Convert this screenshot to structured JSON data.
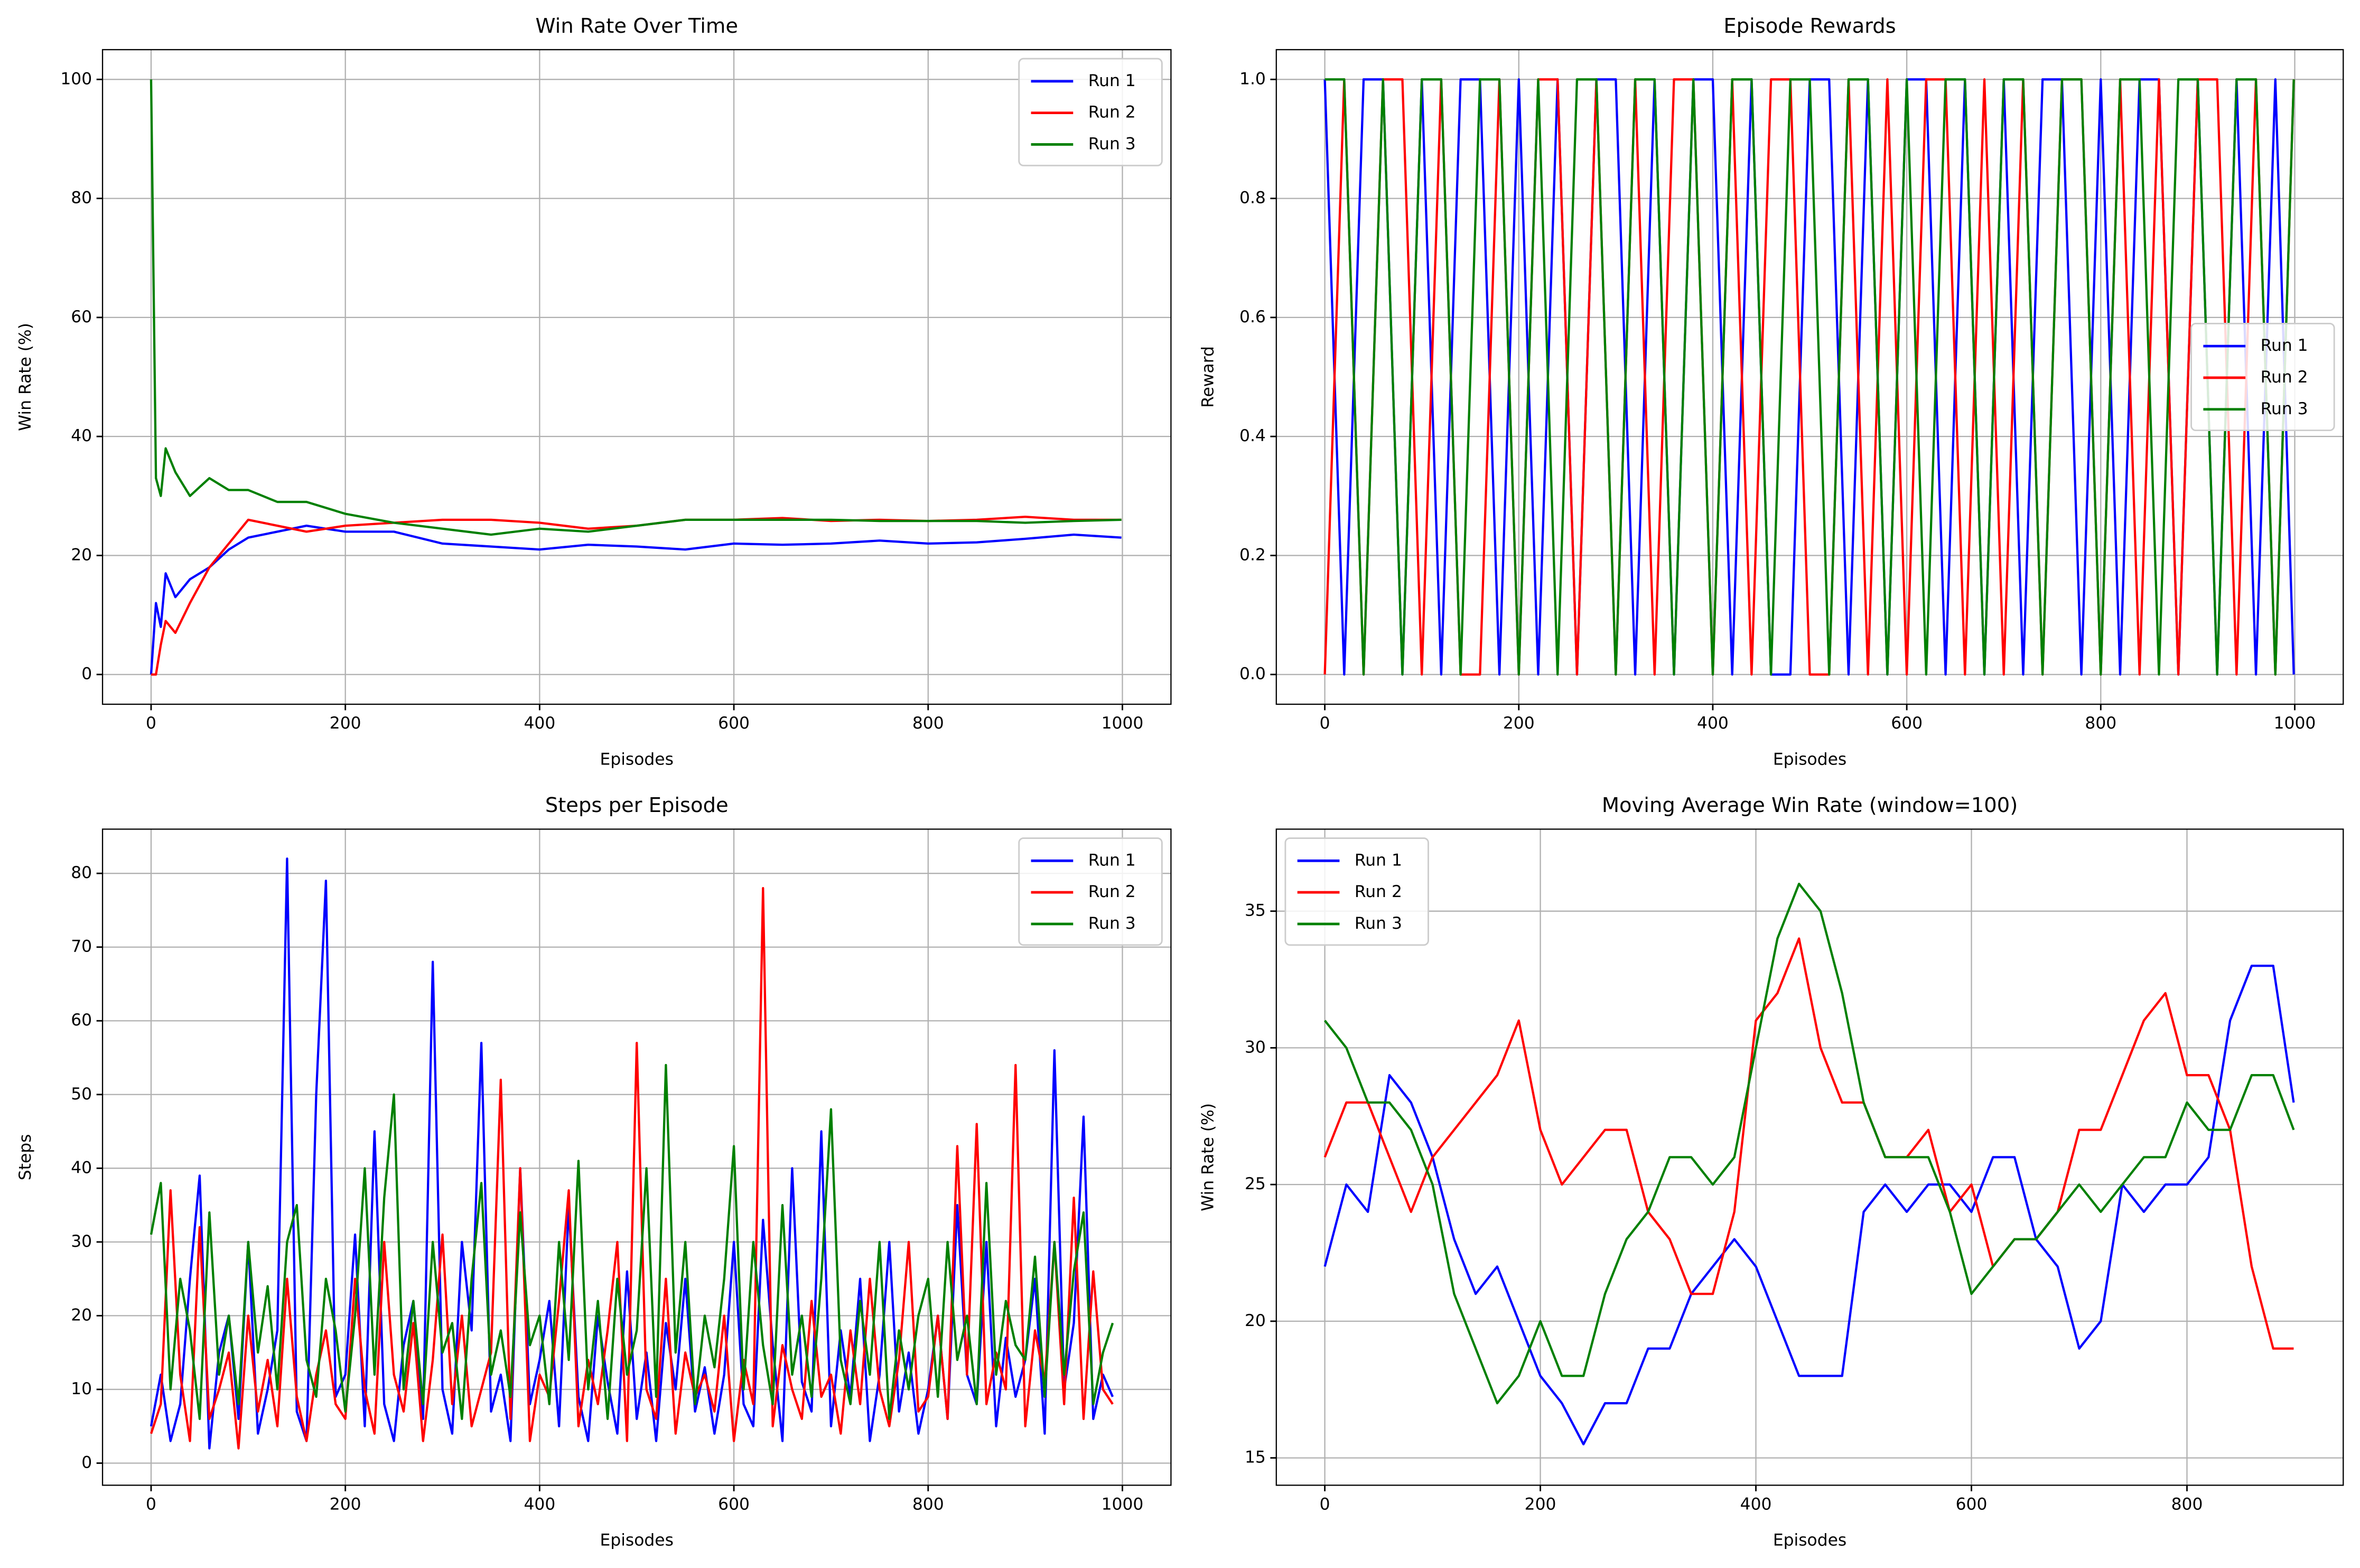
{
  "chart_data": [
    {
      "type": "line",
      "title": "Win Rate Over Time",
      "xlabel": "Episodes",
      "ylabel": "Win Rate (%)",
      "x": [
        0,
        5,
        10,
        15,
        25,
        40,
        60,
        80,
        100,
        130,
        160,
        200,
        250,
        300,
        350,
        400,
        450,
        500,
        550,
        600,
        650,
        700,
        750,
        800,
        850,
        900,
        950,
        999
      ],
      "series": [
        {
          "name": "Run 1",
          "color": "#0000ff",
          "values": [
            0,
            12,
            8,
            17,
            13,
            16,
            18,
            21,
            23,
            24,
            25,
            24,
            24,
            22,
            21.5,
            21,
            21.8,
            21.5,
            21,
            22,
            21.8,
            22,
            22.5,
            22,
            22.2,
            22.8,
            23.5,
            23
          ]
        },
        {
          "name": "Run 2",
          "color": "#ff0000",
          "values": [
            0,
            0,
            5,
            9,
            7,
            12,
            18,
            22,
            26,
            25,
            24,
            25,
            25.5,
            26,
            26,
            25.5,
            24.5,
            25,
            26,
            26,
            26.3,
            25.8,
            26,
            25.8,
            26,
            26.5,
            26,
            26
          ]
        },
        {
          "name": "Run 3",
          "color": "#008000",
          "values": [
            100,
            33,
            30,
            38,
            34,
            30,
            33,
            31,
            31,
            29,
            29,
            27,
            25.5,
            24.5,
            23.5,
            24.5,
            24,
            25,
            26,
            26,
            26,
            26,
            25.8,
            25.8,
            25.8,
            25.5,
            25.8,
            26
          ]
        }
      ],
      "xlim": [
        -50,
        1050
      ],
      "xticks": [
        0,
        200,
        400,
        600,
        800,
        1000
      ],
      "ylim": [
        -5,
        105
      ],
      "yticks": [
        0,
        20,
        40,
        60,
        80,
        100
      ],
      "grid": true,
      "legend": "upper right"
    },
    {
      "type": "line",
      "title": "Episode Rewards",
      "xlabel": "Episodes",
      "ylabel": "Reward",
      "x": [
        0,
        20,
        40,
        60,
        80,
        100,
        120,
        140,
        160,
        180,
        200,
        220,
        240,
        260,
        280,
        300,
        320,
        340,
        360,
        380,
        400,
        420,
        440,
        460,
        480,
        500,
        520,
        540,
        560,
        580,
        600,
        620,
        640,
        660,
        680,
        700,
        720,
        740,
        760,
        780,
        800,
        820,
        840,
        860,
        880,
        900,
        920,
        940,
        960,
        980,
        999
      ],
      "series": [
        {
          "name": "Run 1",
          "color": "#0000ff",
          "values": [
            1,
            0,
            1,
            1,
            0,
            1,
            0,
            1,
            1,
            0,
            1,
            0,
            1,
            0,
            1,
            1,
            0,
            1,
            0,
            1,
            1,
            0,
            1,
            0,
            0,
            1,
            1,
            0,
            1,
            0,
            1,
            1,
            0,
            1,
            0,
            1,
            0,
            1,
            1,
            0,
            1,
            0,
            1,
            1,
            0,
            1,
            0,
            1,
            0,
            1,
            0
          ]
        },
        {
          "name": "Run 2",
          "color": "#ff0000",
          "values": [
            0,
            1,
            0,
            1,
            1,
            0,
            1,
            0,
            0,
            1,
            0,
            1,
            1,
            0,
            1,
            0,
            1,
            0,
            1,
            1,
            0,
            1,
            0,
            1,
            1,
            0,
            0,
            1,
            0,
            1,
            0,
            1,
            1,
            0,
            1,
            0,
            1,
            0,
            1,
            1,
            0,
            1,
            0,
            1,
            0,
            1,
            1,
            0,
            1,
            0,
            1
          ]
        },
        {
          "name": "Run 3",
          "color": "#008000",
          "values": [
            1,
            1,
            0,
            1,
            0,
            1,
            1,
            0,
            1,
            1,
            0,
            1,
            0,
            1,
            1,
            0,
            1,
            1,
            0,
            1,
            0,
            1,
            1,
            0,
            1,
            1,
            0,
            1,
            1,
            0,
            1,
            0,
            1,
            1,
            0,
            1,
            1,
            0,
            1,
            1,
            0,
            1,
            1,
            0,
            1,
            1,
            0,
            1,
            1,
            0,
            1
          ]
        }
      ],
      "xlim": [
        -50,
        1050
      ],
      "xticks": [
        0,
        200,
        400,
        600,
        800,
        1000
      ],
      "ylim": [
        -0.05,
        1.05
      ],
      "yticks": [
        {
          "value": 0,
          "label": "0.0"
        },
        0.2,
        0.4,
        0.6,
        0.8,
        {
          "value": 1,
          "label": "1.0"
        }
      ],
      "grid": true,
      "legend": "center right"
    },
    {
      "type": "line",
      "title": "Steps per Episode",
      "xlabel": "Episodes",
      "ylabel": "Steps",
      "x": [
        0,
        10,
        20,
        30,
        40,
        50,
        60,
        70,
        80,
        90,
        100,
        110,
        120,
        130,
        140,
        150,
        160,
        170,
        180,
        190,
        200,
        210,
        220,
        230,
        240,
        250,
        260,
        270,
        280,
        290,
        300,
        310,
        320,
        330,
        340,
        350,
        360,
        370,
        380,
        390,
        400,
        410,
        420,
        430,
        440,
        450,
        460,
        470,
        480,
        490,
        500,
        510,
        520,
        530,
        540,
        550,
        560,
        570,
        580,
        590,
        600,
        610,
        620,
        630,
        640,
        650,
        660,
        670,
        680,
        690,
        700,
        710,
        720,
        730,
        740,
        750,
        760,
        770,
        780,
        790,
        800,
        810,
        820,
        830,
        840,
        850,
        860,
        870,
        880,
        890,
        900,
        910,
        920,
        930,
        940,
        950,
        960,
        970,
        980,
        990
      ],
      "series": [
        {
          "name": "Run 1",
          "color": "#0000ff",
          "values": [
            5,
            12,
            3,
            8,
            25,
            39,
            2,
            15,
            20,
            6,
            30,
            4,
            10,
            18,
            82,
            7,
            3,
            50,
            79,
            9,
            12,
            31,
            5,
            45,
            8,
            3,
            16,
            22,
            6,
            68,
            10,
            4,
            30,
            18,
            57,
            7,
            12,
            3,
            40,
            8,
            14,
            22,
            5,
            35,
            9,
            3,
            20,
            11,
            4,
            26,
            6,
            15,
            3,
            19,
            10,
            25,
            7,
            13,
            4,
            12,
            30,
            8,
            5,
            33,
            16,
            3,
            40,
            11,
            7,
            45,
            5,
            18,
            9,
            25,
            3,
            12,
            30,
            7,
            15,
            4,
            10,
            20,
            6,
            35,
            12,
            8,
            30,
            5,
            17,
            9,
            14,
            25,
            4,
            56,
            10,
            19,
            47,
            6,
            12,
            9
          ]
        },
        {
          "name": "Run 2",
          "color": "#ff0000",
          "values": [
            4,
            8,
            37,
            12,
            3,
            32,
            6,
            10,
            15,
            2,
            20,
            7,
            14,
            5,
            25,
            9,
            3,
            12,
            18,
            8,
            6,
            25,
            10,
            4,
            30,
            12,
            7,
            19,
            3,
            14,
            31,
            8,
            20,
            5,
            10,
            15,
            52,
            6,
            40,
            3,
            12,
            9,
            22,
            37,
            5,
            14,
            8,
            18,
            30,
            3,
            57,
            10,
            6,
            25,
            4,
            15,
            9,
            12,
            7,
            20,
            3,
            14,
            8,
            78,
            5,
            16,
            10,
            6,
            22,
            9,
            12,
            4,
            18,
            8,
            25,
            10,
            5,
            14,
            30,
            7,
            9,
            20,
            6,
            43,
            12,
            46,
            8,
            15,
            10,
            54,
            5,
            18,
            11,
            30,
            8,
            36,
            6,
            26,
            10,
            8
          ]
        },
        {
          "name": "Run 3",
          "color": "#008000",
          "values": [
            31,
            38,
            10,
            25,
            18,
            6,
            34,
            12,
            20,
            8,
            30,
            15,
            24,
            10,
            30,
            35,
            14,
            9,
            25,
            18,
            7,
            20,
            40,
            12,
            36,
            50,
            10,
            22,
            8,
            30,
            15,
            19,
            6,
            25,
            38,
            12,
            18,
            9,
            34,
            16,
            20,
            8,
            30,
            14,
            41,
            10,
            22,
            6,
            25,
            12,
            18,
            40,
            9,
            54,
            15,
            30,
            8,
            20,
            13,
            25,
            43,
            10,
            30,
            16,
            8,
            35,
            12,
            20,
            9,
            25,
            48,
            14,
            8,
            22,
            12,
            30,
            6,
            18,
            10,
            20,
            25,
            9,
            30,
            14,
            20,
            8,
            38,
            12,
            22,
            16,
            14,
            28,
            9,
            30,
            12,
            26,
            34,
            8,
            15,
            19
          ]
        }
      ],
      "xlim": [
        -50,
        1050
      ],
      "xticks": [
        0,
        200,
        400,
        600,
        800,
        1000
      ],
      "ylim": [
        -3,
        86
      ],
      "yticks": [
        0,
        10,
        20,
        30,
        40,
        50,
        60,
        70,
        80
      ],
      "grid": true,
      "legend": "upper right"
    },
    {
      "type": "line",
      "title": "Moving Average Win Rate (window=100)",
      "xlabel": "Episodes",
      "ylabel": "Win Rate (%)",
      "x": [
        0,
        20,
        40,
        60,
        80,
        100,
        120,
        140,
        160,
        180,
        200,
        220,
        240,
        260,
        280,
        300,
        320,
        340,
        360,
        380,
        400,
        420,
        440,
        460,
        480,
        500,
        520,
        540,
        560,
        580,
        600,
        620,
        640,
        660,
        680,
        700,
        720,
        740,
        760,
        780,
        800,
        820,
        840,
        860,
        880,
        899
      ],
      "series": [
        {
          "name": "Run 1",
          "color": "#0000ff",
          "values": [
            22,
            25,
            24,
            29,
            28,
            26,
            23,
            21,
            22,
            20,
            18,
            17,
            15.5,
            17,
            17,
            19,
            19,
            21,
            22,
            23,
            22,
            20,
            18,
            18,
            18,
            24,
            25,
            24,
            25,
            25,
            24,
            26,
            26,
            23,
            22,
            19,
            20,
            25,
            24,
            25,
            25,
            26,
            31,
            33,
            33,
            28
          ]
        },
        {
          "name": "Run 2",
          "color": "#ff0000",
          "values": [
            26,
            28,
            28,
            26,
            24,
            26,
            27,
            28,
            29,
            31,
            27,
            25,
            26,
            27,
            27,
            24,
            23,
            21,
            21,
            24,
            31,
            32,
            34,
            30,
            28,
            28,
            26,
            26,
            27,
            24,
            25,
            22,
            23,
            23,
            24,
            27,
            27,
            29,
            31,
            32,
            29,
            29,
            27,
            22,
            19,
            19
          ]
        },
        {
          "name": "Run 3",
          "color": "#008000",
          "values": [
            31,
            30,
            28,
            28,
            27,
            25,
            21,
            19,
            17,
            18,
            20,
            18,
            18,
            21,
            23,
            24,
            26,
            26,
            25,
            26,
            30,
            34,
            36,
            35,
            32,
            28,
            26,
            26,
            26,
            24,
            21,
            22,
            23,
            23,
            24,
            25,
            24,
            25,
            26,
            26,
            28,
            27,
            27,
            29,
            29,
            27
          ]
        }
      ],
      "xlim": [
        -45,
        945
      ],
      "xticks": [
        0,
        200,
        400,
        600,
        800
      ],
      "ylim": [
        14,
        38
      ],
      "yticks": [
        15,
        20,
        25,
        30,
        35
      ],
      "grid": true,
      "legend": "upper left"
    }
  ]
}
